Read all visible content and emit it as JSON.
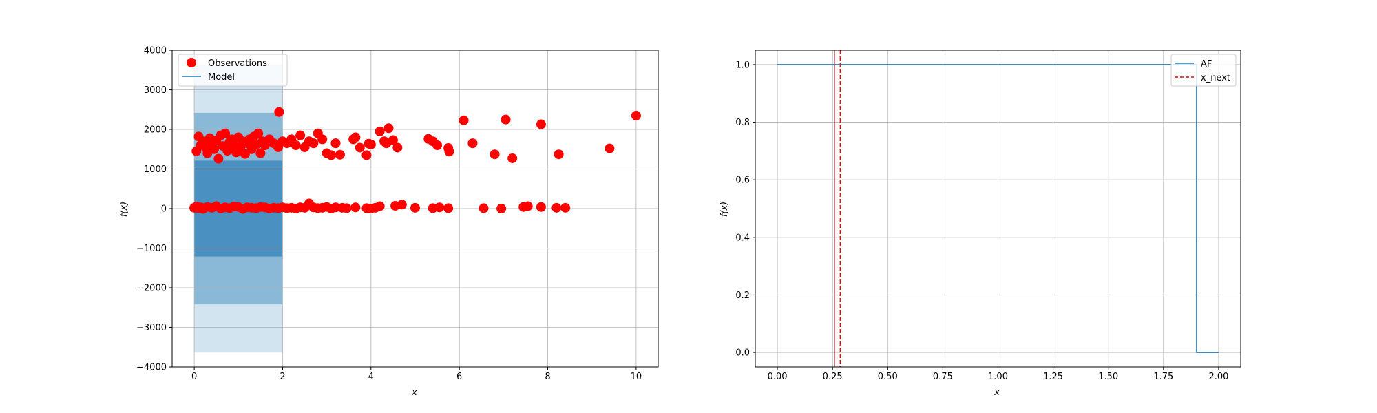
{
  "chart_data": [
    {
      "type": "scatter",
      "xlabel": "x",
      "ylabel": "f(x)",
      "xlim": [
        -0.5,
        10.5
      ],
      "ylim": [
        -4000,
        4000
      ],
      "xticks": [
        0,
        2,
        4,
        6,
        8,
        10
      ],
      "yticks": [
        -4000,
        -3000,
        -2000,
        -1000,
        0,
        1000,
        2000,
        3000,
        4000
      ],
      "grid": true,
      "legend": {
        "placement": "upper-left",
        "entries": [
          "Observations",
          "Model"
        ]
      },
      "colors": {
        "observations": "#ff0000",
        "model": "#1f77b4"
      },
      "model": {
        "x": [
          0,
          2
        ],
        "mean": [
          0,
          0
        ],
        "bands": [
          {
            "sigma": 1,
            "lower": -1210,
            "upper": 1210
          },
          {
            "sigma": 2,
            "lower": -2420,
            "upper": 2420
          },
          {
            "sigma": 3,
            "lower": -3640,
            "upper": 3640
          }
        ]
      },
      "observations": {
        "x": [
          0.05,
          0.1,
          0.15,
          0.2,
          0.25,
          0.3,
          0.35,
          0.4,
          0.45,
          0.5,
          0.55,
          0.6,
          0.65,
          0.7,
          0.75,
          0.8,
          0.85,
          0.9,
          0.95,
          1.0,
          1.05,
          1.1,
          1.15,
          1.2,
          1.25,
          1.3,
          1.35,
          1.4,
          1.45,
          1.5,
          1.55,
          1.6,
          1.7,
          1.8,
          1.9,
          1.92,
          2.0,
          2.1,
          2.2,
          2.3,
          2.4,
          2.5,
          2.6,
          2.7,
          2.8,
          2.9,
          3.0,
          3.1,
          3.2,
          3.3,
          3.6,
          3.65,
          3.75,
          3.9,
          3.95,
          4.0,
          4.2,
          4.3,
          4.35,
          4.4,
          4.5,
          4.6,
          5.3,
          5.4,
          5.5,
          5.75,
          5.77,
          6.1,
          6.3,
          6.8,
          7.05,
          7.2,
          7.85,
          8.25,
          9.4,
          10.0,
          0.0,
          0.05,
          0.1,
          0.15,
          0.2,
          0.3,
          0.4,
          0.5,
          0.6,
          0.7,
          0.8,
          0.9,
          1.0,
          1.1,
          1.2,
          1.3,
          1.4,
          1.5,
          1.6,
          1.7,
          1.8,
          1.9,
          2.0,
          2.1,
          2.2,
          2.3,
          2.4,
          2.5,
          2.6,
          2.7,
          2.8,
          2.9,
          3.0,
          3.1,
          3.2,
          3.35,
          3.45,
          3.65,
          3.9,
          4.0,
          4.1,
          4.2,
          4.55,
          4.7,
          5.0,
          5.4,
          5.55,
          5.75,
          6.55,
          6.95,
          7.45,
          7.55,
          7.85,
          8.2,
          8.4
        ],
        "y": [
          1450,
          1820,
          1600,
          1700,
          1550,
          1400,
          1780,
          1650,
          1500,
          1720,
          1260,
          1850,
          1580,
          1900,
          1460,
          1680,
          1750,
          1600,
          1420,
          1800,
          1560,
          1700,
          1380,
          1650,
          1750,
          1500,
          1820,
          1620,
          1900,
          1400,
          1700,
          1600,
          1750,
          1650,
          1550,
          2440,
          1700,
          1650,
          1750,
          1600,
          1850,
          1550,
          1700,
          1650,
          1900,
          1750,
          1400,
          1350,
          1650,
          1360,
          1750,
          1800,
          1540,
          1350,
          1640,
          1620,
          1950,
          1700,
          1650,
          2030,
          1730,
          1540,
          1760,
          1700,
          1600,
          1530,
          1440,
          2230,
          1650,
          1370,
          2250,
          1270,
          2130,
          1370,
          1520,
          2350,
          20,
          50,
          10,
          30,
          -10,
          40,
          20,
          60,
          0,
          30,
          10,
          50,
          40,
          -10,
          30,
          20,
          10,
          40,
          30,
          0,
          20,
          10,
          30,
          10,
          20,
          0,
          30,
          20,
          130,
          30,
          10,
          20,
          40,
          0,
          30,
          20,
          10,
          30,
          10,
          0,
          20,
          60,
          70,
          100,
          20,
          10,
          30,
          10,
          10,
          0,
          40,
          60,
          40,
          20,
          20
        ]
      }
    },
    {
      "type": "line",
      "xlabel": "x",
      "ylabel": "f(x)",
      "xlim": [
        -0.1,
        2.1
      ],
      "ylim": [
        -0.05,
        1.05
      ],
      "xticks": [
        "0.00",
        "0.25",
        "0.50",
        "0.75",
        "1.00",
        "1.25",
        "1.50",
        "1.75",
        "2.00"
      ],
      "yticks": [
        "0.0",
        "0.2",
        "0.4",
        "0.6",
        "0.8",
        "1.0"
      ],
      "grid": true,
      "legend": {
        "placement": "upper-right",
        "entries": [
          "AF",
          "x_next"
        ]
      },
      "colors": {
        "af": "#1f77b4",
        "x_next": "#ff0000"
      },
      "series": [
        {
          "name": "AF",
          "x": [
            0.0,
            1.9,
            1.9,
            2.0
          ],
          "values": [
            1.0,
            1.0,
            0.0,
            0.0
          ]
        }
      ],
      "x_next": 0.285,
      "x_ref": 0.26
    }
  ]
}
